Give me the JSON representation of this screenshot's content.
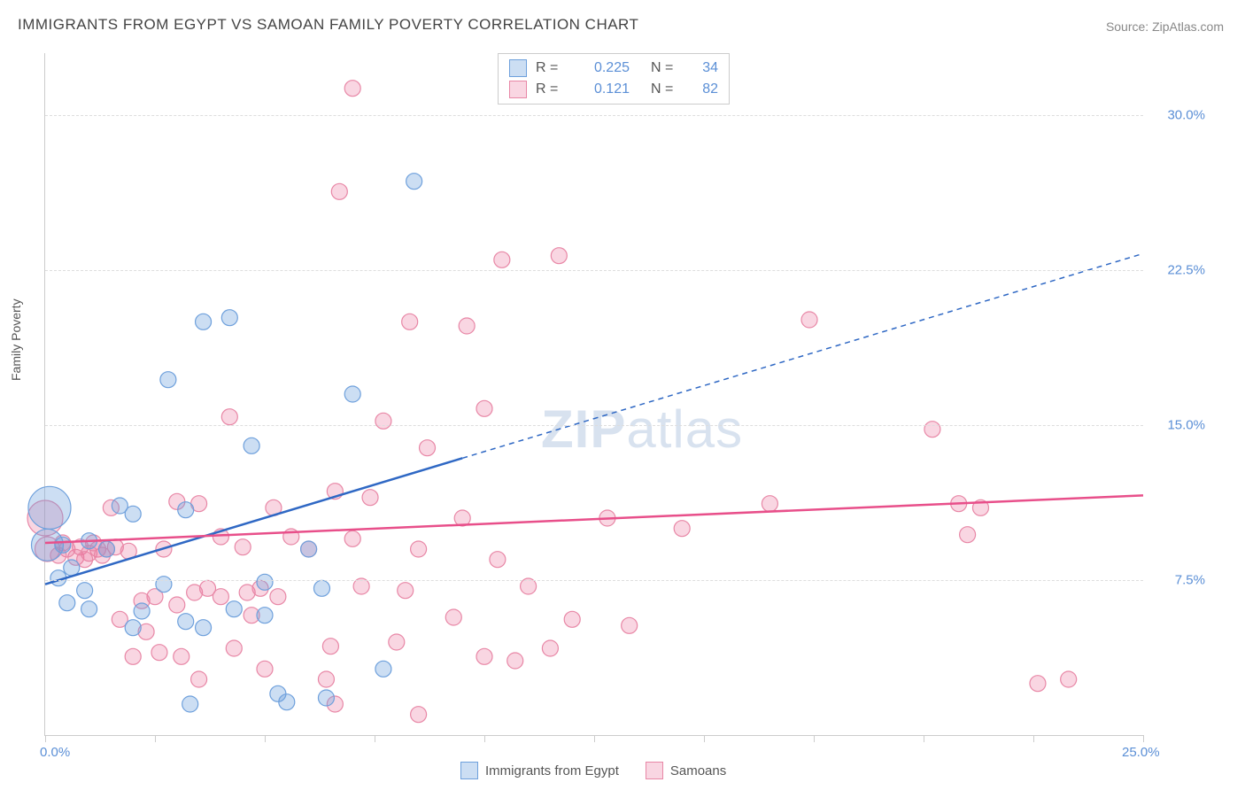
{
  "title": "IMMIGRANTS FROM EGYPT VS SAMOAN FAMILY POVERTY CORRELATION CHART",
  "source": "Source: ZipAtlas.com",
  "ylabel": "Family Poverty",
  "watermark_a": "ZIP",
  "watermark_b": "atlas",
  "chart": {
    "type": "scatter",
    "xlim": [
      0,
      25
    ],
    "ylim": [
      0,
      33
    ],
    "x_ticks": [
      0,
      2.5,
      5,
      7.5,
      10,
      12.5,
      15,
      17.5,
      20,
      22.5,
      25
    ],
    "y_gridlines": [
      7.5,
      15,
      22.5,
      30
    ],
    "x_labels": [
      {
        "v": 0,
        "t": "0.0%"
      },
      {
        "v": 25,
        "t": "25.0%"
      }
    ],
    "y_labels": [
      {
        "v": 7.5,
        "t": "7.5%"
      },
      {
        "v": 15,
        "t": "15.0%"
      },
      {
        "v": 22.5,
        "t": "22.5%"
      },
      {
        "v": 30,
        "t": "30.0%"
      }
    ],
    "background_color": "#ffffff",
    "grid_color": "#dddddd",
    "series": [
      {
        "name": "Immigrants from Egypt",
        "r_value": "0.225",
        "n_value": "34",
        "color_fill": "rgba(110,160,220,0.35)",
        "color_stroke": "#6ea0dc",
        "trend_color": "#2f68c4",
        "trend": {
          "x1": 0,
          "y1": 7.3,
          "x2": 9.5,
          "y2": 13.4,
          "x2_ext": 25,
          "y2_ext": 23.3
        },
        "points": [
          {
            "x": 0.1,
            "y": 11.0,
            "r": 24
          },
          {
            "x": 0.05,
            "y": 9.2,
            "r": 18
          },
          {
            "x": 8.4,
            "y": 26.8,
            "r": 9
          },
          {
            "x": 3.6,
            "y": 20.0,
            "r": 9
          },
          {
            "x": 4.2,
            "y": 20.2,
            "r": 9
          },
          {
            "x": 2.8,
            "y": 17.2,
            "r": 9
          },
          {
            "x": 4.7,
            "y": 14.0,
            "r": 9
          },
          {
            "x": 7.0,
            "y": 16.5,
            "r": 9
          },
          {
            "x": 3.2,
            "y": 10.9,
            "r": 9
          },
          {
            "x": 2.0,
            "y": 10.7,
            "r": 9
          },
          {
            "x": 1.7,
            "y": 11.1,
            "r": 9
          },
          {
            "x": 0.6,
            "y": 8.1,
            "r": 9
          },
          {
            "x": 0.9,
            "y": 7.0,
            "r": 9
          },
          {
            "x": 0.5,
            "y": 6.4,
            "r": 9
          },
          {
            "x": 1.0,
            "y": 6.1,
            "r": 9
          },
          {
            "x": 2.2,
            "y": 6.0,
            "r": 9
          },
          {
            "x": 2.0,
            "y": 5.2,
            "r": 9
          },
          {
            "x": 3.2,
            "y": 5.5,
            "r": 9
          },
          {
            "x": 3.6,
            "y": 5.2,
            "r": 9
          },
          {
            "x": 5.0,
            "y": 5.8,
            "r": 9
          },
          {
            "x": 3.3,
            "y": 1.5,
            "r": 9
          },
          {
            "x": 5.3,
            "y": 2.0,
            "r": 9
          },
          {
            "x": 5.5,
            "y": 1.6,
            "r": 9
          },
          {
            "x": 6.4,
            "y": 1.8,
            "r": 9
          },
          {
            "x": 7.7,
            "y": 3.2,
            "r": 9
          },
          {
            "x": 5.0,
            "y": 7.4,
            "r": 9
          },
          {
            "x": 6.0,
            "y": 9.0,
            "r": 9
          },
          {
            "x": 6.3,
            "y": 7.1,
            "r": 9
          },
          {
            "x": 1.4,
            "y": 9.0,
            "r": 9
          },
          {
            "x": 1.0,
            "y": 9.4,
            "r": 9
          },
          {
            "x": 0.4,
            "y": 9.2,
            "r": 9
          },
          {
            "x": 0.3,
            "y": 7.6,
            "r": 9
          },
          {
            "x": 2.7,
            "y": 7.3,
            "r": 9
          },
          {
            "x": 4.3,
            "y": 6.1,
            "r": 9
          }
        ]
      },
      {
        "name": "Samoans",
        "r_value": "0.121",
        "n_value": "82",
        "color_fill": "rgba(235,120,160,0.30)",
        "color_stroke": "#e887a6",
        "trend_color": "#e84f8a",
        "trend": {
          "x1": 0,
          "y1": 9.3,
          "x2": 25,
          "y2": 11.6,
          "x2_ext": 25,
          "y2_ext": 11.6
        },
        "points": [
          {
            "x": 0.0,
            "y": 10.5,
            "r": 20
          },
          {
            "x": 0.05,
            "y": 9.0,
            "r": 14
          },
          {
            "x": 7.0,
            "y": 31.3,
            "r": 9
          },
          {
            "x": 6.7,
            "y": 26.3,
            "r": 9
          },
          {
            "x": 10.4,
            "y": 23.0,
            "r": 9
          },
          {
            "x": 11.7,
            "y": 23.2,
            "r": 9
          },
          {
            "x": 17.4,
            "y": 20.1,
            "r": 9
          },
          {
            "x": 8.3,
            "y": 20.0,
            "r": 9
          },
          {
            "x": 9.6,
            "y": 19.8,
            "r": 9
          },
          {
            "x": 10.0,
            "y": 15.8,
            "r": 9
          },
          {
            "x": 7.7,
            "y": 15.2,
            "r": 9
          },
          {
            "x": 8.7,
            "y": 13.9,
            "r": 9
          },
          {
            "x": 4.2,
            "y": 15.4,
            "r": 9
          },
          {
            "x": 5.2,
            "y": 11.0,
            "r": 9
          },
          {
            "x": 6.6,
            "y": 11.8,
            "r": 9
          },
          {
            "x": 6.0,
            "y": 9.0,
            "r": 9
          },
          {
            "x": 9.5,
            "y": 10.5,
            "r": 9
          },
          {
            "x": 12.8,
            "y": 10.5,
            "r": 9
          },
          {
            "x": 14.5,
            "y": 10.0,
            "r": 9
          },
          {
            "x": 16.5,
            "y": 11.2,
            "r": 9
          },
          {
            "x": 20.2,
            "y": 14.8,
            "r": 9
          },
          {
            "x": 20.8,
            "y": 11.2,
            "r": 9
          },
          {
            "x": 21.3,
            "y": 11.0,
            "r": 9
          },
          {
            "x": 21.0,
            "y": 9.7,
            "r": 9
          },
          {
            "x": 22.6,
            "y": 2.5,
            "r": 9
          },
          {
            "x": 23.3,
            "y": 2.7,
            "r": 9
          },
          {
            "x": 13.3,
            "y": 5.3,
            "r": 9
          },
          {
            "x": 11.5,
            "y": 4.2,
            "r": 9
          },
          {
            "x": 12.0,
            "y": 5.6,
            "r": 9
          },
          {
            "x": 10.0,
            "y": 3.8,
            "r": 9
          },
          {
            "x": 10.7,
            "y": 3.6,
            "r": 9
          },
          {
            "x": 8.5,
            "y": 1.0,
            "r": 9
          },
          {
            "x": 8.0,
            "y": 4.5,
            "r": 9
          },
          {
            "x": 6.6,
            "y": 1.5,
            "r": 9
          },
          {
            "x": 6.4,
            "y": 2.7,
            "r": 9
          },
          {
            "x": 5.0,
            "y": 3.2,
            "r": 9
          },
          {
            "x": 4.3,
            "y": 4.2,
            "r": 9
          },
          {
            "x": 4.7,
            "y": 5.8,
            "r": 9
          },
          {
            "x": 4.0,
            "y": 6.7,
            "r": 9
          },
          {
            "x": 4.6,
            "y": 6.9,
            "r": 9
          },
          {
            "x": 3.1,
            "y": 3.8,
            "r": 9
          },
          {
            "x": 3.5,
            "y": 2.7,
            "r": 9
          },
          {
            "x": 2.6,
            "y": 4.0,
            "r": 9
          },
          {
            "x": 2.3,
            "y": 5.0,
            "r": 9
          },
          {
            "x": 2.0,
            "y": 3.8,
            "r": 9
          },
          {
            "x": 2.7,
            "y": 9.0,
            "r": 9
          },
          {
            "x": 3.0,
            "y": 11.3,
            "r": 9
          },
          {
            "x": 3.5,
            "y": 11.2,
            "r": 9
          },
          {
            "x": 1.5,
            "y": 11.0,
            "r": 9
          },
          {
            "x": 1.2,
            "y": 9.0,
            "r": 9
          },
          {
            "x": 0.8,
            "y": 9.1,
            "r": 9
          },
          {
            "x": 0.4,
            "y": 9.3,
            "r": 9
          },
          {
            "x": 0.7,
            "y": 8.6,
            "r": 9
          },
          {
            "x": 1.0,
            "y": 8.8,
            "r": 9
          },
          {
            "x": 1.3,
            "y": 8.7,
            "r": 9
          },
          {
            "x": 1.6,
            "y": 9.1,
            "r": 9
          },
          {
            "x": 1.9,
            "y": 8.9,
            "r": 9
          },
          {
            "x": 0.5,
            "y": 9.0,
            "r": 9
          },
          {
            "x": 1.1,
            "y": 9.3,
            "r": 9
          },
          {
            "x": 1.4,
            "y": 9.0,
            "r": 9
          },
          {
            "x": 0.9,
            "y": 8.5,
            "r": 9
          },
          {
            "x": 0.3,
            "y": 8.7,
            "r": 9
          },
          {
            "x": 2.5,
            "y": 6.7,
            "r": 9
          },
          {
            "x": 3.0,
            "y": 6.3,
            "r": 9
          },
          {
            "x": 3.4,
            "y": 6.9,
            "r": 9
          },
          {
            "x": 2.2,
            "y": 6.5,
            "r": 9
          },
          {
            "x": 5.3,
            "y": 6.7,
            "r": 9
          },
          {
            "x": 7.2,
            "y": 7.2,
            "r": 9
          },
          {
            "x": 7.0,
            "y": 9.5,
            "r": 9
          },
          {
            "x": 8.2,
            "y": 7.0,
            "r": 9
          },
          {
            "x": 8.5,
            "y": 9.0,
            "r": 9
          },
          {
            "x": 6.5,
            "y": 4.3,
            "r": 9
          },
          {
            "x": 9.3,
            "y": 5.7,
            "r": 9
          },
          {
            "x": 5.6,
            "y": 9.6,
            "r": 9
          },
          {
            "x": 4.5,
            "y": 9.1,
            "r": 9
          },
          {
            "x": 4.0,
            "y": 9.6,
            "r": 9
          },
          {
            "x": 3.7,
            "y": 7.1,
            "r": 9
          },
          {
            "x": 4.9,
            "y": 7.1,
            "r": 9
          },
          {
            "x": 1.7,
            "y": 5.6,
            "r": 9
          },
          {
            "x": 11.0,
            "y": 7.2,
            "r": 9
          },
          {
            "x": 10.3,
            "y": 8.5,
            "r": 9
          },
          {
            "x": 7.4,
            "y": 11.5,
            "r": 9
          }
        ]
      }
    ]
  },
  "legend_bottom": [
    {
      "label": "Immigrants from Egypt",
      "fill": "rgba(110,160,220,0.35)",
      "stroke": "#6ea0dc"
    },
    {
      "label": "Samoans",
      "fill": "rgba(235,120,160,0.30)",
      "stroke": "#e887a6"
    }
  ]
}
